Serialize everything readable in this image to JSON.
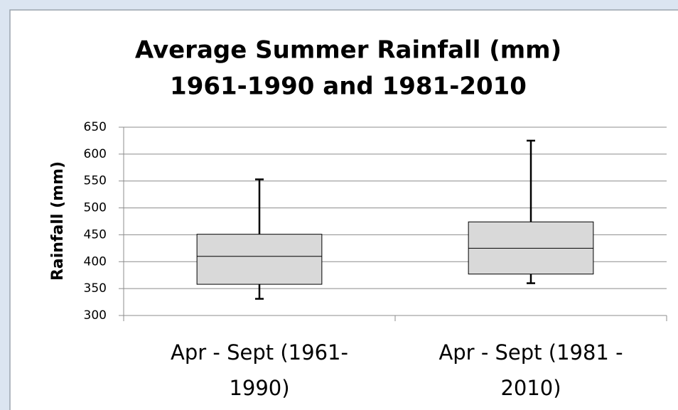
{
  "chart_data": {
    "type": "box",
    "title": [
      "Average Summer Rainfall (mm)",
      "1961-1990 and 1981-2010"
    ],
    "y_label": "Rainfall (mm)",
    "categories": [
      [
        "Apr - Sept  (1961-",
        "1990)"
      ],
      [
        "Apr - Sept (1981 -",
        "2010)"
      ]
    ],
    "min": [
      331,
      360
    ],
    "q1": [
      358,
      377
    ],
    "median": [
      410,
      425
    ],
    "q3": [
      451,
      474
    ],
    "max": [
      553,
      625
    ],
    "color": "#d9d9d9",
    "ylim": [
      300,
      650
    ],
    "yticks": [
      300,
      350,
      400,
      450,
      500,
      550,
      600,
      650
    ],
    "grid": true
  }
}
